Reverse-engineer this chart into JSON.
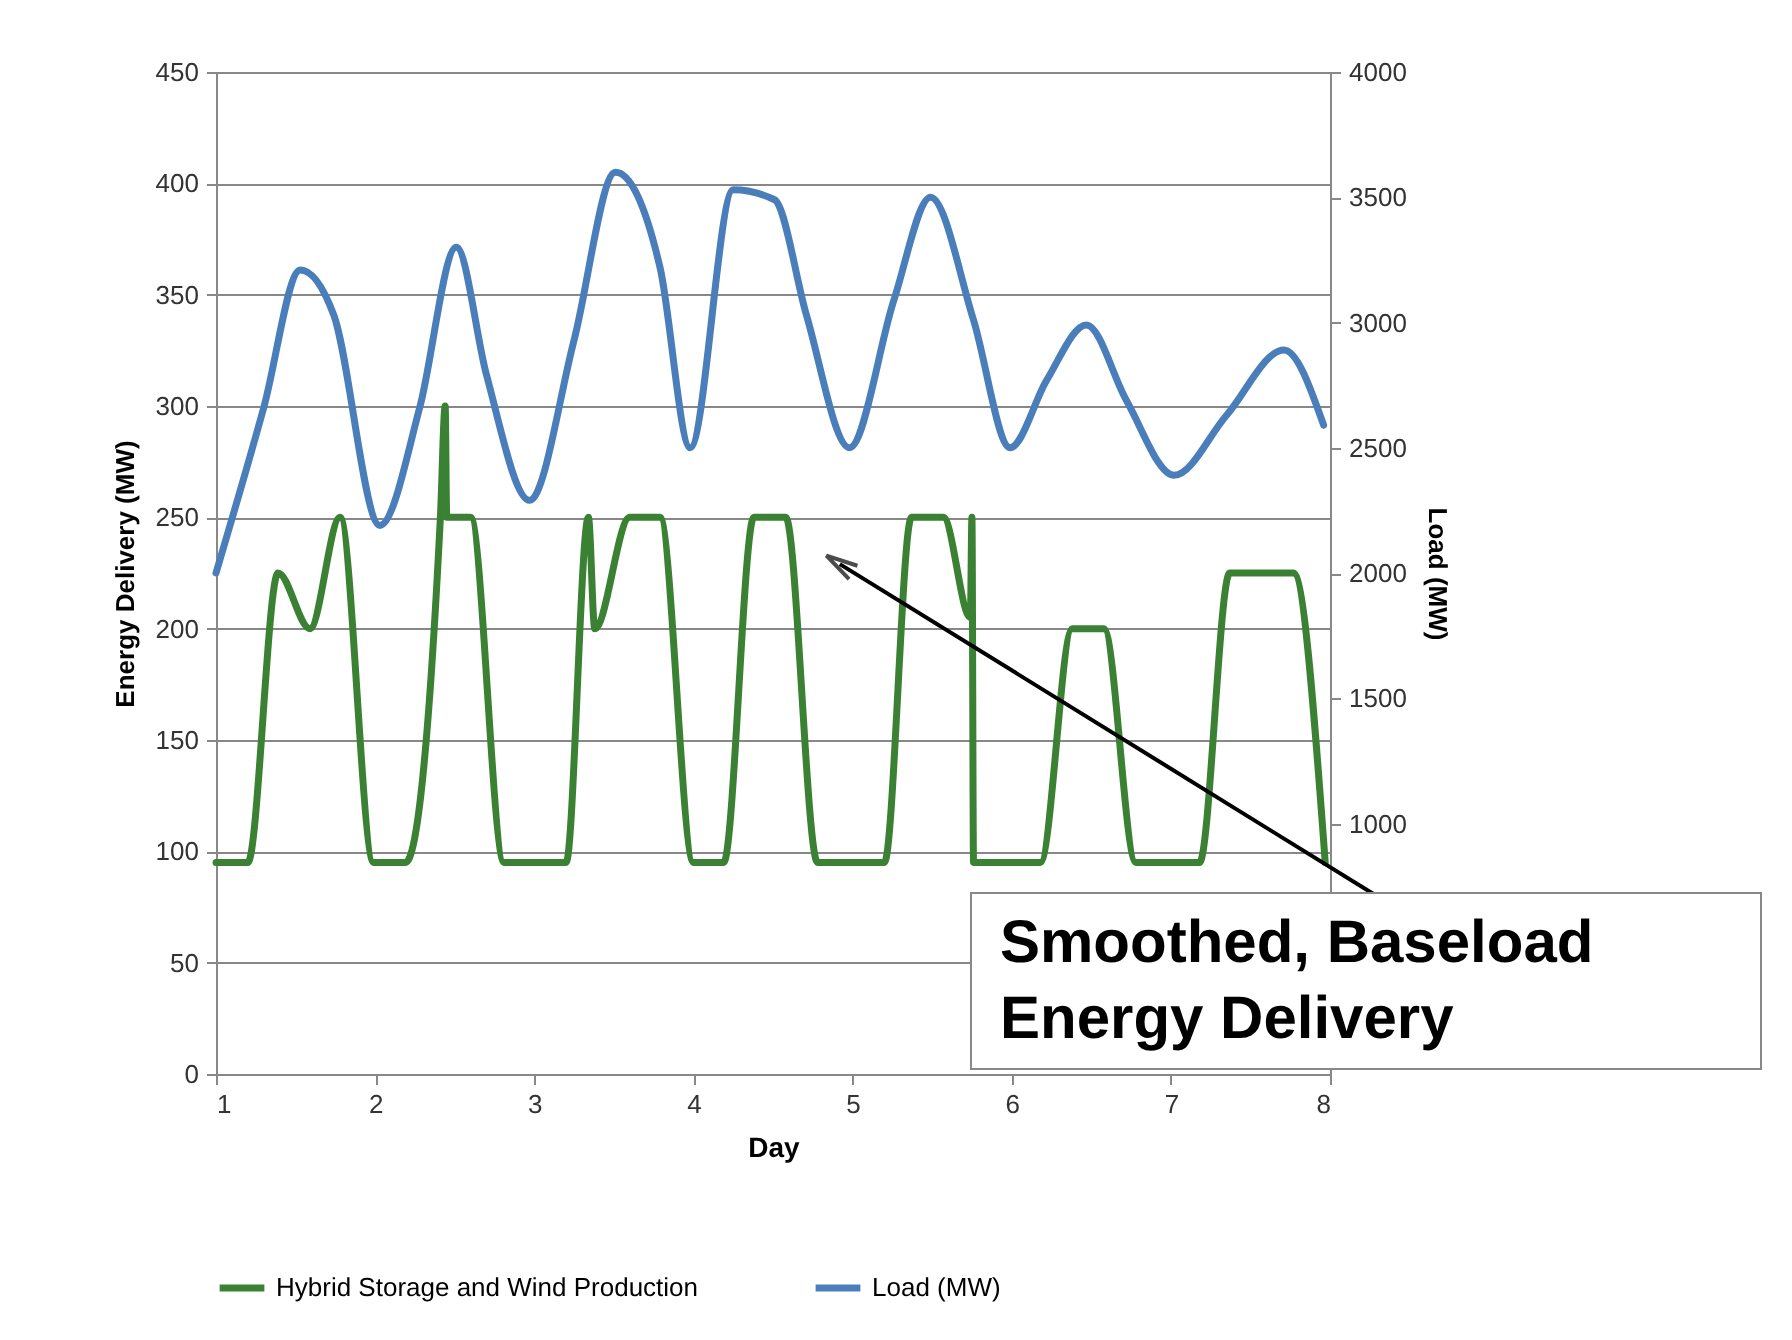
{
  "chart_data": {
    "type": "line",
    "xlabel": "Day",
    "ylabel": "Energy Delivery (MW)",
    "y2label": "Load (MW)",
    "xlim": [
      1,
      8
    ],
    "xticks": [
      1,
      2,
      3,
      4,
      5,
      6,
      7,
      8
    ],
    "ylim": [
      0,
      450
    ],
    "yticks": [
      0,
      50,
      100,
      150,
      200,
      250,
      300,
      350,
      400,
      450
    ],
    "y2lim": [
      0,
      4000
    ],
    "y2ticks": [
      1000,
      1500,
      2000,
      2500,
      3000,
      3500,
      4000
    ],
    "grid": "y",
    "legend": "bottom",
    "line_style": "solid",
    "marker": "none",
    "annotations": [
      {
        "text": "Smoothed, Baseload Energy Delivery",
        "x": 4.92,
        "y": 229
      }
    ],
    "series": [
      {
        "name": "Hybrid Storage and Wind Production",
        "color": "#3b8134",
        "x": [
          1.0,
          1.2,
          1.39,
          1.59,
          1.78,
          1.99,
          2.19,
          2.41,
          2.44,
          2.45,
          2.6,
          2.81,
          3.2,
          3.34,
          3.38,
          3.6,
          3.79,
          4.0,
          4.19,
          4.38,
          4.58,
          4.78,
          5.2,
          5.37,
          5.57,
          5.74,
          5.75,
          5.76,
          6.18,
          6.38,
          6.58,
          6.78,
          7.18,
          7.37,
          7.77,
          7.97
        ],
        "values": [
          95,
          95,
          225,
          200,
          250,
          95,
          95,
          250,
          300,
          250,
          250,
          95,
          95,
          250,
          200,
          250,
          250,
          95,
          95,
          250,
          250,
          95,
          95,
          250,
          250,
          205,
          250,
          95,
          95,
          200,
          200,
          95,
          95,
          225,
          225,
          95
        ]
      },
      {
        "name": "Load (MW)",
        "color": "#4a7ebb",
        "axis": "y2",
        "x": [
          1.0,
          1.3,
          1.53,
          1.74,
          2.03,
          2.28,
          2.51,
          2.7,
          2.97,
          3.25,
          3.51,
          3.79,
          3.98,
          4.25,
          4.51,
          4.71,
          4.98,
          5.26,
          5.49,
          5.76,
          5.99,
          6.22,
          6.47,
          6.72,
          7.02,
          7.35,
          7.71,
          7.96
        ],
        "values": [
          2000,
          2660,
          3210,
          3030,
          2190,
          2660,
          3300,
          2790,
          2290,
          2930,
          3600,
          3220,
          2500,
          3530,
          3490,
          3030,
          2500,
          3090,
          3500,
          3010,
          2500,
          2770,
          2990,
          2690,
          2390,
          2630,
          2890,
          2590
        ]
      }
    ]
  }
}
